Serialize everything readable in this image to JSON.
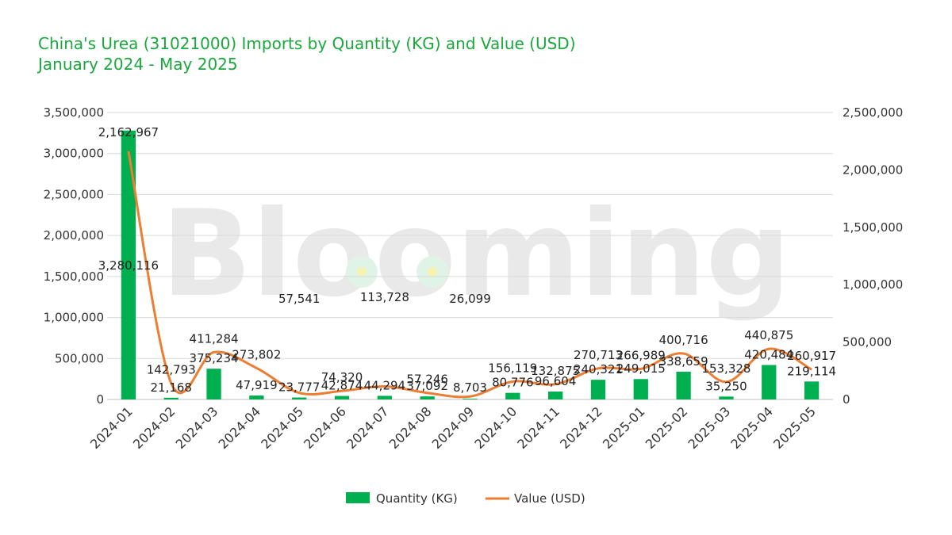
{
  "title": {
    "line1": "China's Urea (31021000) Imports by Quantity (KG) and Value (USD)",
    "line2": "January 2024 - May 2025"
  },
  "watermark": "Blooming",
  "colors": {
    "title": "#1aa83c",
    "bars": "#00b050",
    "line": "#ed7d31",
    "grid": "#d9d9d9"
  },
  "chart_data": {
    "type": "bar",
    "categories": [
      "2024-01",
      "2024-02",
      "2024-03",
      "2024-04",
      "2024-05",
      "2024-06",
      "2024-07",
      "2024-08",
      "2024-09",
      "2024-10",
      "2024-11",
      "2024-12",
      "2025-01",
      "2025-02",
      "2025-03",
      "2025-04",
      "2025-05"
    ],
    "series": [
      {
        "name": "Quantity (KG)",
        "type": "bar",
        "axis": "left",
        "values": [
          3280116,
          21168,
          375234,
          47919,
          23777,
          42874,
          44294,
          37092,
          8703,
          80776,
          96604,
          240321,
          249015,
          338659,
          35250,
          420484,
          219114
        ],
        "labels": [
          "3,280,116",
          "21,168",
          "375,234",
          "47,919",
          "23,777",
          "42,874",
          "44,294",
          "37,092",
          "8,703",
          "80,776",
          "96,604",
          "240,321",
          "249,015",
          "338,659",
          "35,250",
          "420,484",
          "219,114"
        ]
      },
      {
        "name": "Value (USD)",
        "type": "line",
        "axis": "right",
        "values": [
          2162967,
          142793,
          411284,
          273802,
          57541,
          74320,
          113728,
          57246,
          26099,
          156119,
          132875,
          270713,
          266989,
          400716,
          153328,
          440875,
          260917
        ],
        "labels": [
          "2,162,967",
          "142,793",
          "411,284",
          "273,802",
          "57,541",
          "74,320",
          "113,728",
          "57,246",
          "26,099",
          "156,119",
          "132,875",
          "270,713",
          "266,989",
          "400,716",
          "153,328",
          "440,875",
          "260,917"
        ]
      }
    ],
    "left_axis": {
      "ylim": [
        0,
        3500000
      ],
      "ticks": [
        0,
        500000,
        1000000,
        1500000,
        2000000,
        2500000,
        3000000,
        3500000
      ],
      "tick_labels": [
        "0",
        "500,000",
        "1,000,000",
        "1,500,000",
        "2,000,000",
        "2,500,000",
        "3,000,000",
        "3,500,000"
      ]
    },
    "right_axis": {
      "ylim": [
        0,
        2500000
      ],
      "ticks": [
        0,
        500000,
        1000000,
        1500000,
        2000000,
        2500000
      ],
      "tick_labels": [
        "0",
        "500,000",
        "1,000,000",
        "1,500,000",
        "2,000,000",
        "2,500,000"
      ]
    },
    "grid": true,
    "legend": "bottom-center"
  }
}
